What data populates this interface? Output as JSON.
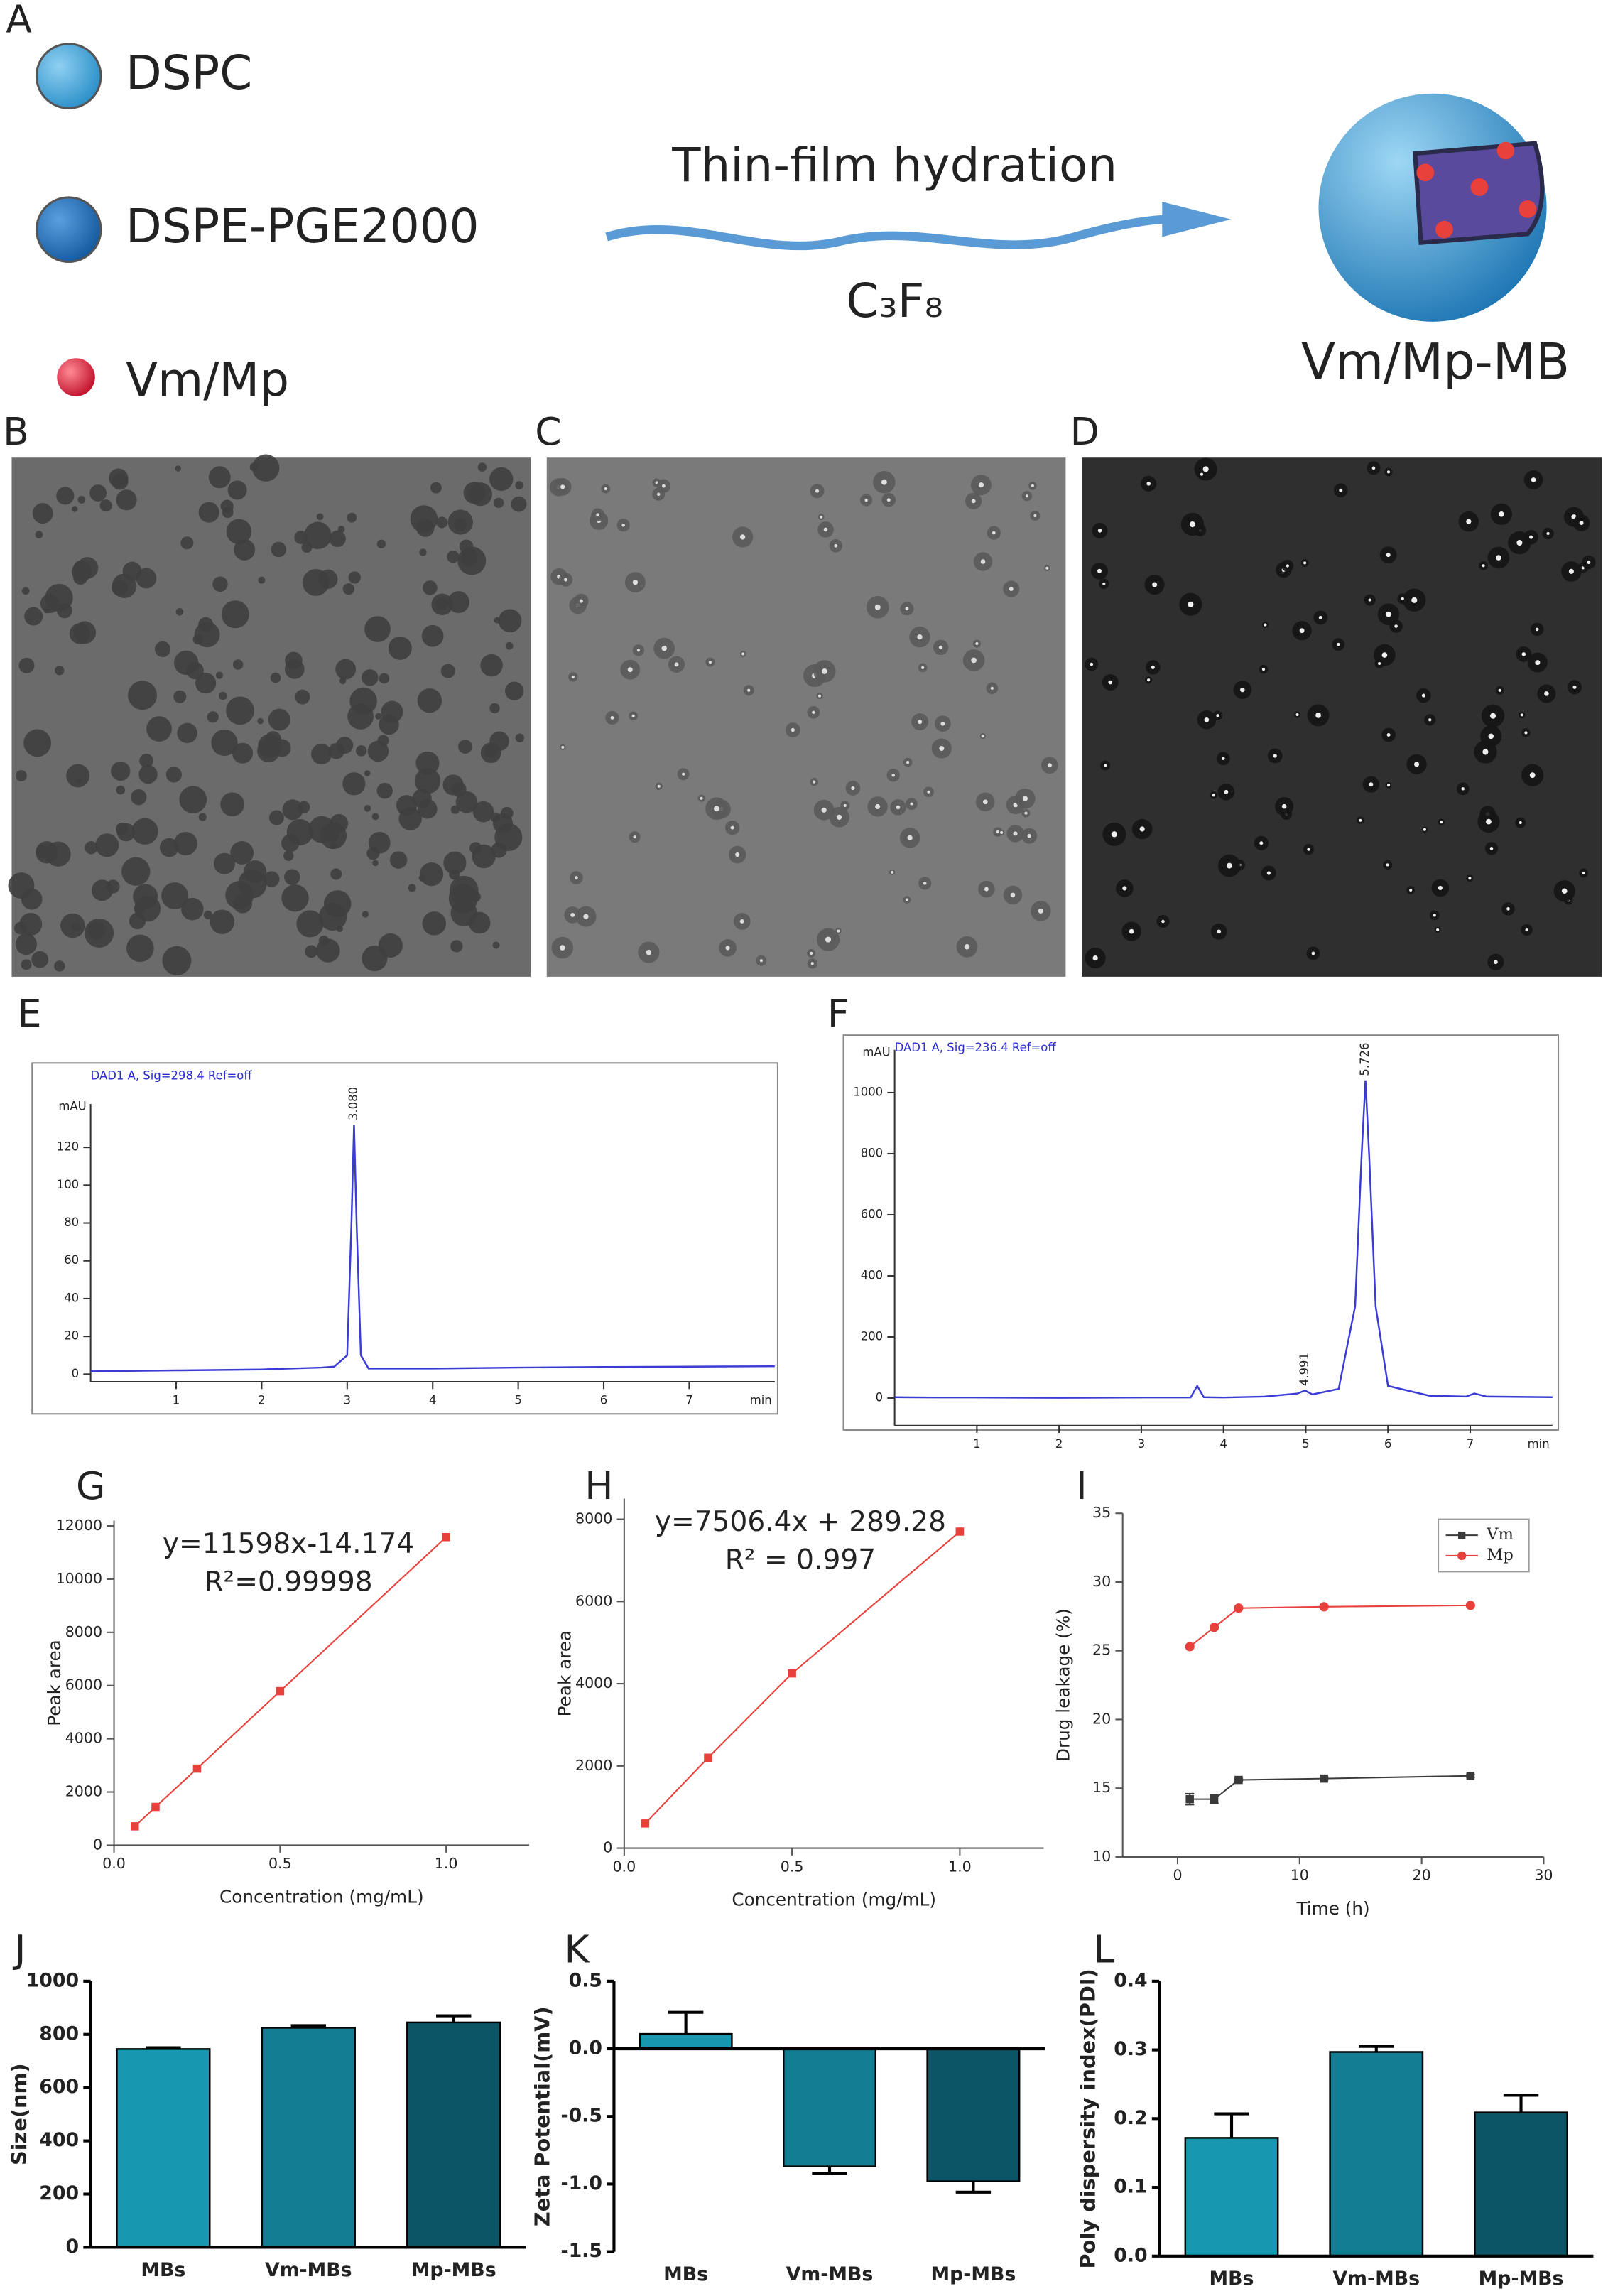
{
  "panel_labels": [
    "A",
    "B",
    "C",
    "D",
    "E",
    "F",
    "G",
    "H",
    "I",
    "J",
    "K",
    "L"
  ],
  "schematic": {
    "legend": [
      "DSPC",
      "DSPE-PGE2000",
      "Vm/Mp"
    ],
    "arrow_label": "Thin-film hydration",
    "gas": "C₃F₈",
    "product": "Vm/Mp-MB"
  },
  "chart_data": [
    {
      "type": "line",
      "title": "DAD1 A, Sig=298.4 Ref=off",
      "ylabel": "mAU",
      "xlabel": "min",
      "x": [
        0,
        1,
        2,
        2.7,
        2.85,
        3.0,
        3.05,
        3.08,
        3.11,
        3.16,
        3.25,
        4,
        5,
        6,
        7,
        8
      ],
      "series": [
        {
          "color": "#3b3bd6",
          "values": [
            1.5,
            2,
            2.5,
            3.5,
            4,
            10,
            80,
            132,
            80,
            10,
            3,
            3,
            3.5,
            3.8,
            4,
            4.2
          ]
        }
      ],
      "xlim": [
        0,
        8
      ],
      "ylim": [
        -4,
        143
      ],
      "xticks": [
        1,
        2,
        3,
        4,
        5,
        6,
        7
      ],
      "yticks": [
        0,
        20,
        40,
        60,
        80,
        100,
        120
      ],
      "peak_labels": [
        {
          "value": 3.08,
          "label": "3.080"
        }
      ]
    },
    {
      "type": "line",
      "title": "DAD1 A, Sig=236.4 Ref=off",
      "ylabel": "mAU",
      "xlabel": "min",
      "x": [
        0,
        0.5,
        1,
        2,
        3,
        3.6,
        3.68,
        3.76,
        4,
        4.5,
        4.9,
        4.99,
        5.08,
        5.4,
        5.6,
        5.68,
        5.726,
        5.77,
        5.85,
        6,
        6.5,
        6.95,
        7.05,
        7.2,
        8
      ],
      "series": [
        {
          "color": "#3b3bd6",
          "values": [
            3,
            2,
            2,
            1,
            2,
            2,
            40,
            3,
            2,
            5,
            15,
            25,
            12,
            30,
            300,
            800,
            1040,
            800,
            300,
            40,
            8,
            5,
            15,
            5,
            3
          ]
        }
      ],
      "xlim": [
        0,
        8
      ],
      "ylim": [
        -90,
        1140
      ],
      "xticks": [
        1,
        2,
        3,
        4,
        5,
        6,
        7
      ],
      "yticks": [
        0,
        200,
        400,
        600,
        800,
        1000
      ],
      "peak_labels": [
        {
          "value": 4.99,
          "label": "4.991"
        },
        {
          "value": 5.726,
          "label": "5.726"
        }
      ]
    },
    {
      "type": "line",
      "markers": true,
      "xlabel": "Concentration (mg/mL)",
      "ylabel": "Peak area",
      "x": [
        0.0625,
        0.125,
        0.25,
        0.5,
        1.0
      ],
      "series": [
        {
          "color": "#e8413c",
          "marker": "square",
          "values": [
            710,
            1440,
            2880,
            5790,
            11580
          ]
        }
      ],
      "xlim": [
        0,
        1.25
      ],
      "ylim": [
        0,
        12200
      ],
      "xticks": [
        {
          "value": 0,
          "label": "0.0"
        },
        0.5,
        {
          "value": 1,
          "label": "1.0"
        }
      ],
      "yticks": [
        0,
        2000,
        4000,
        6000,
        8000,
        10000,
        12000
      ],
      "equation": [
        "y=11598x-14.174",
        "R²=0.99998"
      ]
    },
    {
      "type": "line",
      "markers": true,
      "xlabel": "Concentration (mg/mL)",
      "ylabel": "Peak area",
      "x": [
        0.0625,
        0.25,
        0.5,
        1.0
      ],
      "series": [
        {
          "color": "#e8413c",
          "marker": "square",
          "values": [
            600,
            2200,
            4250,
            7700
          ]
        }
      ],
      "xlim": [
        0,
        1.25
      ],
      "ylim": [
        0,
        8500
      ],
      "xticks": [
        {
          "value": 0,
          "label": "0.0"
        },
        0.5,
        {
          "value": 1,
          "label": "1.0"
        }
      ],
      "yticks": [
        0,
        2000,
        4000,
        6000,
        8000
      ],
      "equation": [
        "y=7506.4x + 289.28",
        "R² = 0.997"
      ]
    },
    {
      "type": "line",
      "markers": true,
      "xlabel": "Time (h)",
      "ylabel": "Drug leakage (%)",
      "x": [
        1,
        3,
        5,
        12,
        24
      ],
      "series": [
        {
          "name": "Vm",
          "color": "#3a3a3a",
          "marker": "square",
          "values": [
            14.2,
            14.2,
            15.6,
            15.7,
            15.9
          ],
          "errors": [
            0.4,
            0.3,
            0.1,
            0.1,
            0.1
          ]
        },
        {
          "name": "Mp",
          "color": "#e8413c",
          "marker": "circle",
          "values": [
            25.3,
            26.7,
            28.1,
            28.2,
            28.3
          ]
        }
      ],
      "xlim": [
        -4.5,
        30
      ],
      "ylim": [
        10,
        35
      ],
      "xticks": [
        0,
        10,
        20,
        30
      ],
      "yticks": [
        10,
        15,
        20,
        25,
        30,
        35
      ],
      "legend": "upper right"
    },
    {
      "type": "bar",
      "ylabel": "Size(nm)",
      "categories": [
        "MBs",
        "Vm-MBs",
        "Mp-MBs"
      ],
      "values": [
        745,
        825,
        845
      ],
      "errors": [
        5,
        8,
        25
      ],
      "colors": [
        "#1797b0",
        "#137e93",
        "#0b5566"
      ],
      "ylim": [
        0,
        1000
      ],
      "yticks": [
        0,
        200,
        400,
        600,
        800,
        1000
      ]
    },
    {
      "type": "bar",
      "ylabel": "Zeta Potential(mV)",
      "categories": [
        "MBs",
        "Vm-MBs",
        "Mp-MBs"
      ],
      "values": [
        0.11,
        -0.87,
        -0.98
      ],
      "errors": [
        0.16,
        0.05,
        0.08
      ],
      "colors": [
        "#1797b0",
        "#137e93",
        "#0b5566"
      ],
      "ylim": [
        -1.5,
        0.5
      ],
      "yticks": [
        0.5,
        {
          "value": 0,
          "label": "0.0"
        },
        -0.5,
        {
          "value": -1,
          "label": "-1.0"
        },
        -1.5
      ]
    },
    {
      "type": "bar",
      "ylabel": "Poly dispersity index(PDI)",
      "categories": [
        "MBs",
        "Vm-MBs",
        "Mp-MBs"
      ],
      "values": [
        0.172,
        0.297,
        0.209
      ],
      "errors": [
        0.035,
        0.008,
        0.025
      ],
      "colors": [
        "#1797b0",
        "#137e93",
        "#0b5566"
      ],
      "ylim": [
        0,
        0.4
      ],
      "yticks": [
        {
          "value": 0,
          "label": "0.0"
        },
        0.1,
        0.2,
        0.3,
        0.4
      ]
    }
  ]
}
